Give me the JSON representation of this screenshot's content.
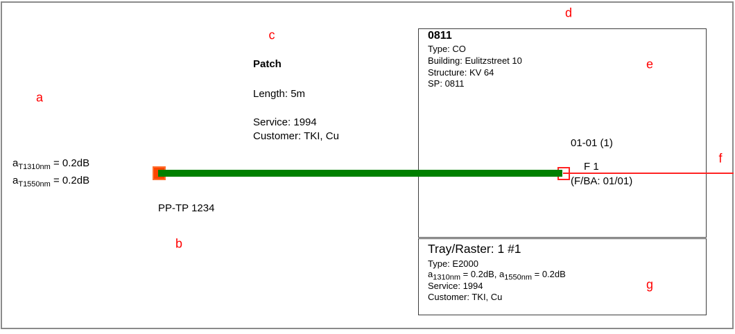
{
  "annotations": {
    "color": "#ff0000",
    "items": [
      {
        "label": "a"
      },
      {
        "label": "b"
      },
      {
        "label": "c"
      },
      {
        "label": "d"
      },
      {
        "label": "e"
      },
      {
        "label": "f"
      },
      {
        "label": "g"
      }
    ]
  },
  "cable": {
    "color": "#008000",
    "type_label": "PP-TP 1234",
    "attenuation": {
      "line1": {
        "base": "a",
        "sub": "T1310nm",
        "rest": " = 0.2dB"
      },
      "line2": {
        "base": "a",
        "sub": "T1550nm",
        "rest": " = 0.2dB"
      }
    },
    "info": {
      "title": "Patch",
      "length": "Length: 5m",
      "service": "Service: 1994",
      "customer": "Customer: TKI, Cu"
    }
  },
  "site_box": {
    "title": "0811",
    "type": "Type: CO",
    "building": "Building: Eulitzstreet 10",
    "structure": "Structure: KV 64",
    "sp": "SP: 0811"
  },
  "port": {
    "module": "01-01 (1)",
    "fiber": "F 1",
    "fba": "(F/BA: 01/01)"
  },
  "tray_box": {
    "title": "Tray/Raster: 1 #1",
    "type": "Type: E2000",
    "attenuation": {
      "p1": "a",
      "s1": "1310nm",
      "p2": " = 0.2dB, a",
      "s2": "1550nm",
      "p3": " = 0.2dB"
    },
    "service": "Service: 1994",
    "customer": "Customer: TKI, Cu"
  },
  "connectors": {
    "left_fill": "#ff4500",
    "left_border": "#ff7031",
    "right_outline": "#ff2222"
  }
}
